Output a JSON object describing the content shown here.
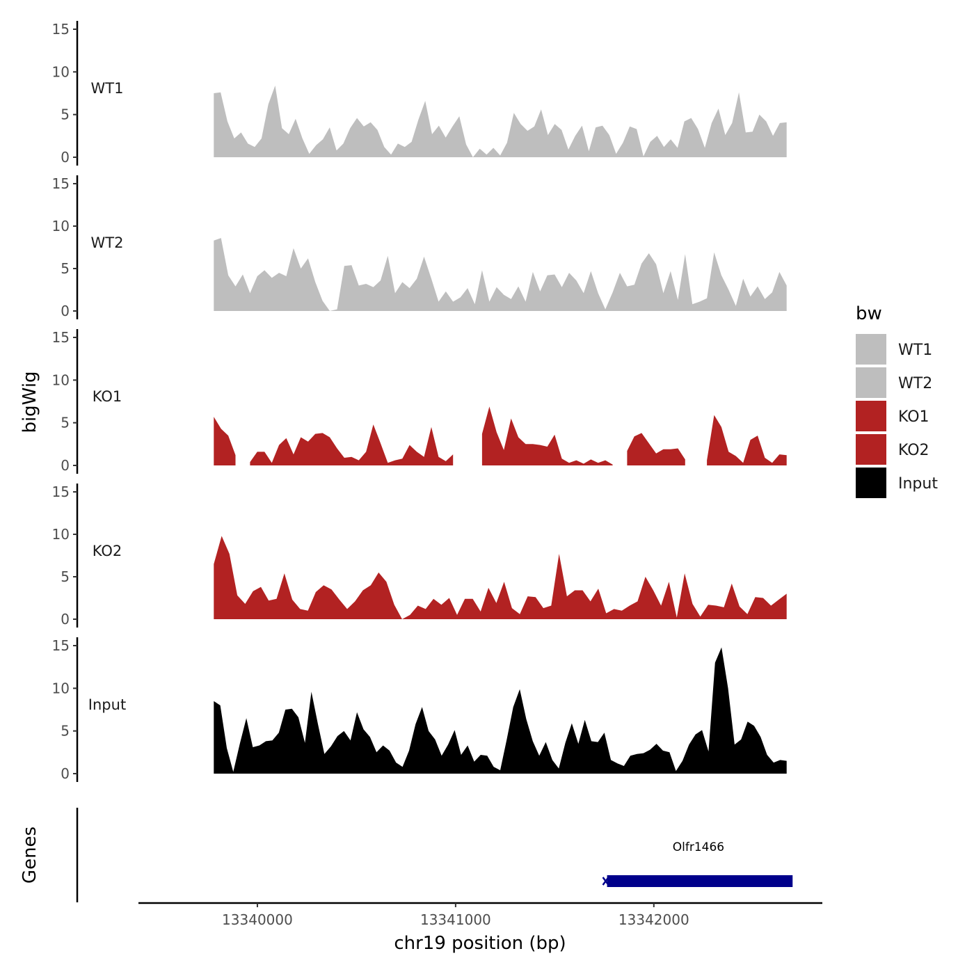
{
  "chart_data": {
    "type": "area",
    "ylabel": "bigWig",
    "genes_label": "Genes",
    "xlabel": "chr19 position (bp)",
    "ylim": [
      0,
      15
    ],
    "yticks": [
      0,
      5,
      10,
      15
    ],
    "xlim": [
      13339400,
      13342850
    ],
    "xticks": [
      13340000,
      13341000,
      13342000
    ],
    "xtick_labels": [
      "13340000",
      "13341000",
      "13342000"
    ],
    "x_start": 13339780,
    "x_end": 13342670,
    "legend": {
      "title": "bw",
      "entries": [
        {
          "label": "WT1",
          "color": "#bebebe"
        },
        {
          "label": "WT2",
          "color": "#bebebe"
        },
        {
          "label": "KO1",
          "color": "#b22222"
        },
        {
          "label": "KO2",
          "color": "#b22222"
        },
        {
          "label": "Input",
          "color": "#000000"
        }
      ]
    },
    "tracks": [
      {
        "name": "WT1",
        "color": "#bebebe",
        "values": [
          7.5,
          7.6,
          4.2,
          2.2,
          2.9,
          1.6,
          1.2,
          2.2,
          6.2,
          8.4,
          3.4,
          2.7,
          4.5,
          2.2,
          0.4,
          1.4,
          2.1,
          3.5,
          0.8,
          1.6,
          3.4,
          4.6,
          3.6,
          4.1,
          3.2,
          1.2,
          0.3,
          1.6,
          1.2,
          1.8,
          4.4,
          6.6,
          2.7,
          3.7,
          2.3,
          3.6,
          4.8,
          1.5,
          0,
          1.0,
          0.3,
          1.1,
          0.2,
          1.7,
          5.2,
          3.9,
          3.1,
          3.6,
          5.6,
          2.6,
          3.9,
          3.2,
          0.9,
          2.5,
          3.7,
          0.7,
          3.5,
          3.7,
          2.6,
          0.4,
          1.7,
          3.6,
          3.3,
          0.1,
          1.8,
          2.5,
          1.2,
          2.1,
          1.1,
          4.2,
          4.6,
          3.3,
          1.1,
          4.0,
          5.7,
          2.6,
          4.0,
          7.6,
          2.9,
          3.0,
          5.0,
          4.2,
          2.5,
          4.0,
          4.1
        ]
      },
      {
        "name": "WT2",
        "color": "#bebebe",
        "values": [
          8.3,
          8.6,
          4.2,
          2.9,
          4.3,
          2.1,
          4.1,
          4.8,
          3.9,
          4.5,
          4.1,
          7.4,
          5.0,
          6.2,
          3.4,
          1.2,
          0,
          0.2,
          5.3,
          5.4,
          3.0,
          3.2,
          2.8,
          3.6,
          6.5,
          2.1,
          3.4,
          2.7,
          3.8,
          6.4,
          3.8,
          1.1,
          2.3,
          1.1,
          1.6,
          2.7,
          0.8,
          4.8,
          1.1,
          2.8,
          1.9,
          1.4,
          2.9,
          1.1,
          4.6,
          2.3,
          4.2,
          4.3,
          2.8,
          4.5,
          3.6,
          2.1,
          4.7,
          2.1,
          0.2,
          2.2,
          4.5,
          2.9,
          3.1,
          5.6,
          6.8,
          5.5,
          2.1,
          4.7,
          1.3,
          6.7,
          0.8,
          1.1,
          1.5,
          6.9,
          4.2,
          2.5,
          0.6,
          3.8,
          1.7,
          2.9,
          1.4,
          2.2,
          4.6,
          3.0
        ]
      },
      {
        "name": "KO1",
        "color": "#b22222",
        "values": [
          5.7,
          4.3,
          3.5,
          1.2,
          null,
          0.4,
          1.6,
          1.6,
          0.3,
          2.4,
          3.2,
          1.3,
          3.3,
          2.8,
          3.7,
          3.8,
          3.3,
          2.0,
          0.9,
          1.0,
          0.6,
          1.6,
          4.8,
          2.6,
          0.3,
          0.6,
          0.8,
          2.4,
          1.6,
          1.0,
          4.5,
          1.0,
          0.5,
          1.3,
          null,
          null,
          null,
          3.7,
          6.9,
          3.9,
          1.8,
          5.5,
          3.3,
          2.5,
          2.5,
          2.4,
          2.2,
          3.6,
          0.8,
          0.3,
          0.6,
          0.2,
          0.7,
          0.3,
          0.6,
          0.1,
          null,
          1.7,
          3.4,
          3.8,
          2.6,
          1.4,
          1.9,
          1.9,
          2.0,
          0.7,
          null,
          null,
          0.6,
          5.9,
          4.5,
          1.6,
          1.1,
          0.3,
          3.0,
          3.5,
          0.9,
          0.3,
          1.3,
          1.2
        ]
      },
      {
        "name": "KO2",
        "color": "#b22222",
        "values": [
          6.5,
          9.8,
          7.7,
          2.8,
          1.8,
          3.3,
          3.8,
          2.2,
          2.4,
          5.4,
          2.3,
          1.2,
          1.0,
          3.2,
          4.0,
          3.5,
          2.3,
          1.2,
          2.1,
          3.4,
          4.0,
          5.5,
          4.4,
          1.7,
          0,
          0.5,
          1.6,
          1.2,
          2.4,
          1.7,
          2.5,
          0.5,
          2.4,
          2.4,
          0.9,
          3.7,
          1.9,
          4.4,
          1.3,
          0.6,
          2.7,
          2.6,
          1.3,
          1.6,
          7.7,
          2.7,
          3.4,
          3.4,
          2.1,
          3.6,
          0.7,
          1.2,
          1.0,
          1.6,
          2.1,
          5.0,
          3.4,
          1.6,
          4.4,
          0.2,
          5.4,
          1.8,
          0.3,
          1.7,
          1.6,
          1.4,
          4.2,
          1.5,
          0.6,
          2.6,
          2.5,
          1.6,
          2.3,
          3.0
        ]
      },
      {
        "name": "Input",
        "color": "#000000",
        "values": [
          8.5,
          8.0,
          3.0,
          0.2,
          3.5,
          6.5,
          3.1,
          3.3,
          3.8,
          3.9,
          4.8,
          7.5,
          7.6,
          6.6,
          3.6,
          9.6,
          5.8,
          2.3,
          3.2,
          4.4,
          5.0,
          3.9,
          7.2,
          5.2,
          4.3,
          2.5,
          3.3,
          2.7,
          1.3,
          0.8,
          2.7,
          5.8,
          7.8,
          5.0,
          4.0,
          2.1,
          3.4,
          5.1,
          2.2,
          3.3,
          1.4,
          2.2,
          2.1,
          0.8,
          0.4,
          4.0,
          7.8,
          9.9,
          6.4,
          3.8,
          2.1,
          3.7,
          1.6,
          0.6,
          3.6,
          5.9,
          3.5,
          6.3,
          3.8,
          3.7,
          4.8,
          1.6,
          1.2,
          0.9,
          2.1,
          2.3,
          2.4,
          2.8,
          3.5,
          2.7,
          2.5,
          0.3,
          1.5,
          3.4,
          4.6,
          5.1,
          2.6,
          13.0,
          14.8,
          10.0,
          3.4,
          4.0,
          6.1,
          5.6,
          4.3,
          2.2,
          1.3,
          1.6,
          1.5
        ]
      }
    ],
    "genes": [
      {
        "name": "Olfr1466",
        "start": 13341750,
        "end": 13342700,
        "color": "#00008b"
      }
    ]
  }
}
